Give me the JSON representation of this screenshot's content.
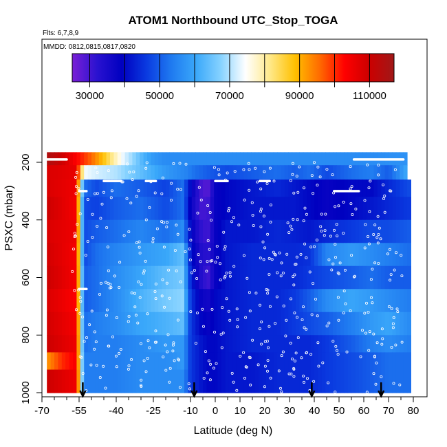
{
  "chart_data": {
    "type": "heatmap",
    "title": "ATOM1 Northbound UTC_Stop_TOGA",
    "subtitle_flights": "Flts: 6,7,8,9",
    "subtitle_dates": "MMDD: 0812,0815,0817,0820",
    "xlabel": "Latitude (deg N)",
    "ylabel": "PSXC (mbar)",
    "xlim": [
      -70,
      82
    ],
    "ylim": [
      1000,
      150
    ],
    "x_ticks": [
      -70,
      -55,
      -40,
      -25,
      -10,
      0,
      10,
      20,
      30,
      40,
      50,
      60,
      70,
      80
    ],
    "x_tick_labels": [
      "-70",
      "-55",
      "-40",
      "-25",
      "-10",
      "0",
      "10",
      "20",
      "30",
      "40",
      "50",
      "60",
      "70",
      "80"
    ],
    "x_minor_ticks": [
      -65,
      -60,
      -50,
      -45,
      -35,
      -30,
      -20,
      -15,
      -5,
      5,
      15,
      25,
      35,
      45,
      55,
      65,
      75
    ],
    "y_ticks": [
      200,
      400,
      600,
      800,
      1000
    ],
    "y_tick_labels": [
      "200",
      "400",
      "600",
      "800",
      "1000"
    ],
    "colorbar": {
      "min": 25000,
      "max": 117000,
      "ticks": [
        30000,
        50000,
        70000,
        90000,
        110000
      ],
      "tick_labels": [
        "30000",
        "50000",
        "70000",
        "90000",
        "110000"
      ],
      "gridlines": [
        30000,
        40000,
        50000,
        60000,
        70000,
        80000,
        90000,
        100000,
        110000
      ],
      "colors": [
        "#7a1fd6",
        "#2a12d0",
        "#0000c0",
        "#0a3ae0",
        "#1f7af0",
        "#3aa8fa",
        "#86d2ff",
        "#ffffff",
        "#ffe887",
        "#ffc000",
        "#ff6a00",
        "#ff0000",
        "#cc0000",
        "#a01818"
      ]
    },
    "flight_markers_lat": [
      -53.5,
      -8.5,
      39,
      67
    ],
    "layers": [
      {
        "p_top": 165,
        "p_bot": 210,
        "values": [
          [
            -68,
            115000
          ],
          [
            -62,
            110000
          ],
          [
            -56,
            103000
          ],
          [
            -50,
            96000
          ],
          [
            -45,
            88000
          ],
          [
            -41,
            80000
          ],
          [
            -37,
            73000
          ],
          [
            -33,
            68000
          ],
          [
            -29,
            62000
          ],
          [
            -25,
            58000
          ],
          [
            -20,
            56000
          ],
          [
            -10,
            56000
          ],
          [
            0,
            56000
          ],
          [
            20,
            56000
          ],
          [
            40,
            56000
          ],
          [
            60,
            56000
          ],
          [
            77,
            57000
          ]
        ]
      },
      {
        "p_top": 210,
        "p_bot": 260,
        "values": [
          [
            -68,
            108000
          ],
          [
            -56,
            106000
          ],
          [
            -53,
            74000
          ],
          [
            -48,
            72000
          ],
          [
            -40,
            70000
          ],
          [
            -30,
            64000
          ],
          [
            -20,
            58000
          ],
          [
            -12,
            55000
          ],
          [
            -8,
            52000
          ],
          [
            0,
            49000
          ],
          [
            5,
            48000
          ],
          [
            15,
            50000
          ],
          [
            25,
            52000
          ],
          [
            32,
            50000
          ],
          [
            38,
            52000
          ],
          [
            45,
            48000
          ],
          [
            55,
            52000
          ],
          [
            63,
            54000
          ],
          [
            70,
            50000
          ],
          [
            77,
            60000
          ]
        ]
      },
      {
        "p_top": 260,
        "p_bot": 320,
        "values": [
          [
            -68,
            108000
          ],
          [
            -56,
            105000
          ],
          [
            -53,
            52000
          ],
          [
            -48,
            48000
          ],
          [
            -40,
            52000
          ],
          [
            -30,
            50000
          ],
          [
            -20,
            47000
          ],
          [
            -13,
            52000
          ],
          [
            -10,
            40000
          ],
          [
            -6,
            30000
          ],
          [
            -3,
            28000
          ],
          [
            0,
            38000
          ],
          [
            5,
            40000
          ],
          [
            15,
            42000
          ],
          [
            25,
            44000
          ],
          [
            32,
            42000
          ],
          [
            38,
            40000
          ],
          [
            45,
            38000
          ],
          [
            55,
            40000
          ],
          [
            63,
            40000
          ],
          [
            70,
            44000
          ],
          [
            78,
            48000
          ]
        ]
      },
      {
        "p_top": 320,
        "p_bot": 400,
        "values": [
          [
            -68,
            110000
          ],
          [
            -56,
            104000
          ],
          [
            -53,
            48000
          ],
          [
            -48,
            47000
          ],
          [
            -40,
            50000
          ],
          [
            -30,
            52000
          ],
          [
            -20,
            48000
          ],
          [
            -13,
            52000
          ],
          [
            -10,
            38000
          ],
          [
            -6,
            30000
          ],
          [
            -3,
            30000
          ],
          [
            0,
            38000
          ],
          [
            5,
            40000
          ],
          [
            15,
            42000
          ],
          [
            25,
            42000
          ],
          [
            32,
            42000
          ],
          [
            38,
            40000
          ],
          [
            45,
            38000
          ],
          [
            55,
            40000
          ],
          [
            63,
            42000
          ],
          [
            70,
            44000
          ],
          [
            78,
            46000
          ]
        ]
      },
      {
        "p_top": 400,
        "p_bot": 480,
        "values": [
          [
            -68,
            108000
          ],
          [
            -56,
            105000
          ],
          [
            -53,
            48000
          ],
          [
            -48,
            50000
          ],
          [
            -40,
            52000
          ],
          [
            -30,
            55000
          ],
          [
            -20,
            52000
          ],
          [
            -13,
            56000
          ],
          [
            -10,
            40000
          ],
          [
            -6,
            32000
          ],
          [
            -3,
            30000
          ],
          [
            0,
            38000
          ],
          [
            5,
            42000
          ],
          [
            15,
            42000
          ],
          [
            25,
            44000
          ],
          [
            32,
            43000
          ],
          [
            38,
            42000
          ],
          [
            45,
            44000
          ],
          [
            55,
            46000
          ],
          [
            63,
            48000
          ],
          [
            70,
            48000
          ],
          [
            78,
            50000
          ]
        ]
      },
      {
        "p_top": 480,
        "p_bot": 560,
        "values": [
          [
            -68,
            109000
          ],
          [
            -56,
            104000
          ],
          [
            -53,
            48000
          ],
          [
            -48,
            52000
          ],
          [
            -40,
            55000
          ],
          [
            -30,
            58000
          ],
          [
            -20,
            60000
          ],
          [
            -13,
            64000
          ],
          [
            -10,
            42000
          ],
          [
            -6,
            34000
          ],
          [
            -3,
            32000
          ],
          [
            0,
            38000
          ],
          [
            5,
            42000
          ],
          [
            15,
            44000
          ],
          [
            25,
            44000
          ],
          [
            32,
            44000
          ],
          [
            38,
            45000
          ],
          [
            45,
            55000
          ],
          [
            55,
            58000
          ],
          [
            63,
            56000
          ],
          [
            70,
            54000
          ],
          [
            78,
            52000
          ]
        ]
      },
      {
        "p_top": 560,
        "p_bot": 640,
        "values": [
          [
            -68,
            110000
          ],
          [
            -56,
            104000
          ],
          [
            -53,
            50000
          ],
          [
            -48,
            52000
          ],
          [
            -40,
            56000
          ],
          [
            -30,
            60000
          ],
          [
            -20,
            64000
          ],
          [
            -13,
            66000
          ],
          [
            -10,
            44000
          ],
          [
            -6,
            34000
          ],
          [
            -3,
            30000
          ],
          [
            0,
            38000
          ],
          [
            5,
            42000
          ],
          [
            15,
            44000
          ],
          [
            25,
            44000
          ],
          [
            32,
            44000
          ],
          [
            38,
            46000
          ],
          [
            45,
            48000
          ],
          [
            55,
            50000
          ],
          [
            63,
            52000
          ],
          [
            70,
            50000
          ],
          [
            78,
            50000
          ]
        ]
      },
      {
        "p_top": 640,
        "p_bot": 720,
        "values": [
          [
            -68,
            108000
          ],
          [
            -56,
            103000
          ],
          [
            -53,
            50000
          ],
          [
            -48,
            52000
          ],
          [
            -40,
            56000
          ],
          [
            -30,
            62000
          ],
          [
            -20,
            66000
          ],
          [
            -13,
            68000
          ],
          [
            -10,
            46000
          ],
          [
            -6,
            38000
          ],
          [
            -3,
            36000
          ],
          [
            0,
            40000
          ],
          [
            5,
            42000
          ],
          [
            15,
            44000
          ],
          [
            25,
            44000
          ],
          [
            32,
            46000
          ],
          [
            38,
            50000
          ],
          [
            45,
            56000
          ],
          [
            55,
            60000
          ],
          [
            63,
            58000
          ],
          [
            70,
            56000
          ],
          [
            78,
            54000
          ]
        ]
      },
      {
        "p_top": 720,
        "p_bot": 800,
        "values": [
          [
            -68,
            109000
          ],
          [
            -56,
            104000
          ],
          [
            -53,
            52000
          ],
          [
            -48,
            54000
          ],
          [
            -40,
            56000
          ],
          [
            -30,
            60000
          ],
          [
            -20,
            62000
          ],
          [
            -13,
            64000
          ],
          [
            -10,
            46000
          ],
          [
            -6,
            40000
          ],
          [
            -3,
            38000
          ],
          [
            0,
            40000
          ],
          [
            5,
            42000
          ],
          [
            15,
            44000
          ],
          [
            25,
            44000
          ],
          [
            32,
            46000
          ],
          [
            38,
            48000
          ],
          [
            45,
            50000
          ],
          [
            55,
            54000
          ],
          [
            63,
            58000
          ],
          [
            70,
            60000
          ],
          [
            78,
            56000
          ]
        ]
      },
      {
        "p_top": 800,
        "p_bot": 860,
        "values": [
          [
            -68,
            110000
          ],
          [
            -56,
            105000
          ],
          [
            -53,
            52000
          ],
          [
            -48,
            54000
          ],
          [
            -40,
            54000
          ],
          [
            -30,
            56000
          ],
          [
            -20,
            58000
          ],
          [
            -13,
            58000
          ],
          [
            -10,
            46000
          ],
          [
            -6,
            42000
          ],
          [
            -3,
            40000
          ],
          [
            0,
            40000
          ],
          [
            5,
            42000
          ],
          [
            15,
            44000
          ],
          [
            25,
            44000
          ],
          [
            32,
            44000
          ],
          [
            38,
            44000
          ],
          [
            45,
            46000
          ],
          [
            55,
            50000
          ],
          [
            63,
            54000
          ],
          [
            70,
            56000
          ],
          [
            78,
            54000
          ]
        ]
      },
      {
        "p_top": 860,
        "p_bot": 920,
        "values": [
          [
            -68,
            92000
          ],
          [
            -62,
            100000
          ],
          [
            -56,
            104000
          ],
          [
            -53,
            54000
          ],
          [
            -48,
            54000
          ],
          [
            -40,
            54000
          ],
          [
            -30,
            56000
          ],
          [
            -20,
            56000
          ],
          [
            -13,
            58000
          ],
          [
            -10,
            46000
          ],
          [
            -6,
            42000
          ],
          [
            -3,
            40000
          ],
          [
            0,
            40000
          ],
          [
            5,
            42000
          ],
          [
            15,
            42000
          ],
          [
            25,
            44000
          ],
          [
            32,
            44000
          ],
          [
            38,
            44000
          ],
          [
            45,
            46000
          ],
          [
            55,
            48000
          ],
          [
            63,
            50000
          ],
          [
            70,
            52000
          ],
          [
            78,
            52000
          ]
        ]
      },
      {
        "p_top": 920,
        "p_bot": 1000,
        "values": [
          [
            -68,
            110000
          ],
          [
            -56,
            105000
          ],
          [
            -53,
            54000
          ],
          [
            -48,
            54000
          ],
          [
            -40,
            54000
          ],
          [
            -30,
            56000
          ],
          [
            -20,
            56000
          ],
          [
            -13,
            56000
          ],
          [
            -10,
            46000
          ],
          [
            -6,
            42000
          ],
          [
            -3,
            40000
          ],
          [
            0,
            40000
          ],
          [
            5,
            42000
          ],
          [
            15,
            42000
          ],
          [
            25,
            44000
          ],
          [
            32,
            44000
          ],
          [
            38,
            44000
          ],
          [
            45,
            46000
          ],
          [
            55,
            48000
          ],
          [
            63,
            50000
          ],
          [
            70,
            52000
          ],
          [
            78,
            52000
          ]
        ]
      }
    ],
    "white_flight_segments": [
      {
        "p": 190,
        "lat_from": -68,
        "lat_to": -60
      },
      {
        "p": 190,
        "lat_from": 56,
        "lat_to": 76
      },
      {
        "p": 265,
        "lat_from": -45,
        "lat_to": -38
      },
      {
        "p": 265,
        "lat_from": -28,
        "lat_to": -24
      },
      {
        "p": 265,
        "lat_from": 0,
        "lat_to": 5
      },
      {
        "p": 265,
        "lat_from": 18,
        "lat_to": 22
      },
      {
        "p": 300,
        "lat_from": -55,
        "lat_to": -52
      },
      {
        "p": 300,
        "lat_from": 48,
        "lat_to": 58
      },
      {
        "p": 640,
        "lat_from": -55,
        "lat_to": -52
      }
    ]
  }
}
